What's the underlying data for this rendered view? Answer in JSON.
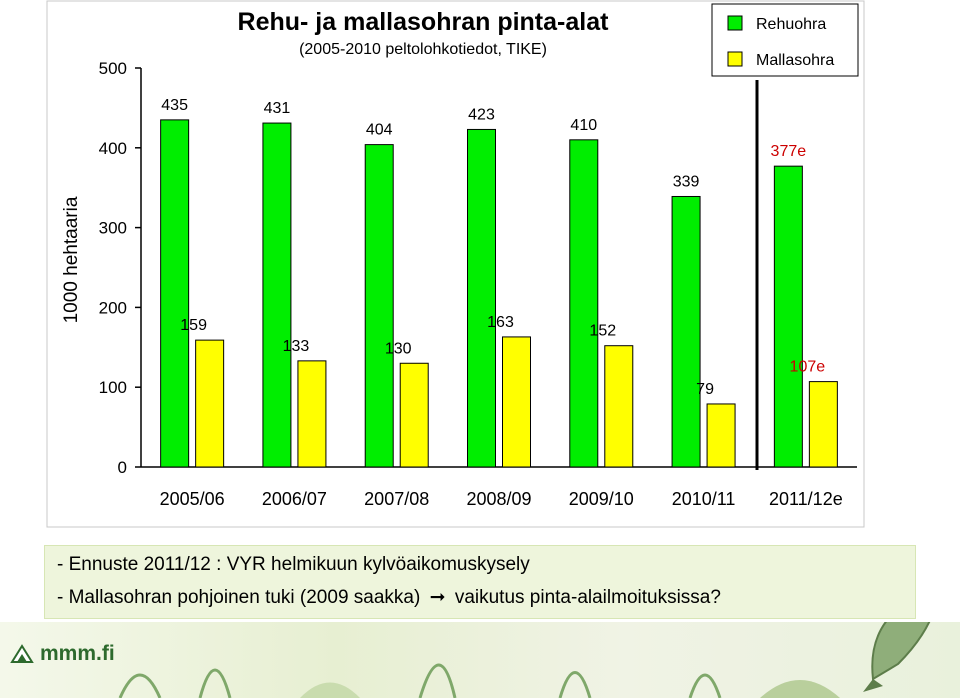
{
  "chart_data": {
    "type": "bar",
    "title": "Rehu- ja mallasohran pinta-alat",
    "subtitle": "(2005-2010 peltolohkotiedot, TIKE)",
    "xlabel": "",
    "ylabel": "1000 hehtaaria",
    "ylim": [
      0,
      500
    ],
    "yticks": [
      0,
      100,
      200,
      300,
      400,
      500
    ],
    "categories": [
      "2005/06",
      "2006/07",
      "2007/08",
      "2008/09",
      "2009/10",
      "2010/11",
      "2011/12e"
    ],
    "series": [
      {
        "name": "Rehuohra",
        "color": "#00ee00",
        "values": [
          435,
          431,
          404,
          423,
          410,
          339,
          377
        ],
        "labels": [
          "435",
          "431",
          "404",
          "423",
          "410",
          "339",
          "377e"
        ]
      },
      {
        "name": "Mallasohra",
        "color": "#ffff00",
        "values": [
          159,
          133,
          130,
          163,
          152,
          79,
          107
        ],
        "labels": [
          "159",
          "133",
          "130",
          "163",
          "152",
          "79",
          "107e"
        ]
      }
    ],
    "estimate_label_color": "#cc0000",
    "grid": false,
    "legend_position": "top-right"
  },
  "notes": {
    "line1": "- Ennuste 2011/12 : VYR helmikuun kylvöaikomuskysely",
    "line2_before": "- Mallasohran pohjoinen tuki (2009 saakka)",
    "line2_after": "vaikutus pinta-alailmoituksissa?"
  },
  "footer": {
    "logo_text": "mmm.fi",
    "icons": [
      "mmm-logo-icon",
      "arrow-right-icon",
      "fish-icon"
    ]
  }
}
